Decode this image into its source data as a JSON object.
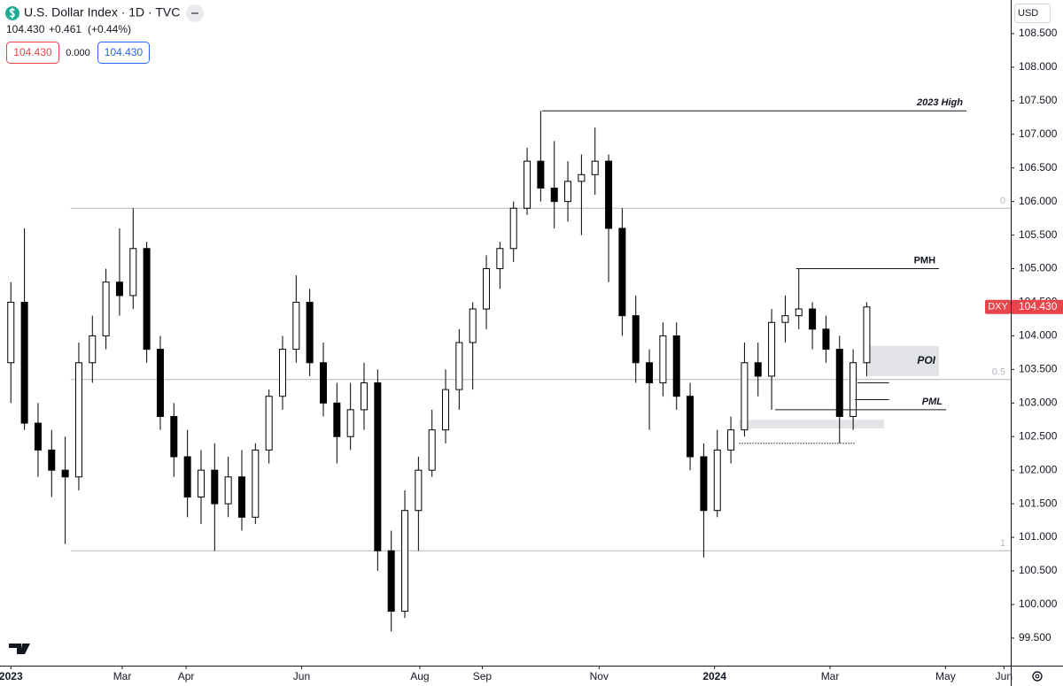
{
  "chart_data": {
    "type": "candlestick",
    "title": "U.S. Dollar Index · 1D · TVC",
    "header": {
      "price": "104.430",
      "change": "+0.461",
      "change_pct": "(+0.44%)",
      "sell": "104.430",
      "spread": "0.000",
      "buy": "104.430"
    },
    "currency": "USD",
    "x": [
      0,
      5,
      10,
      15,
      20,
      25,
      30,
      35,
      40,
      45,
      50,
      55,
      60,
      65,
      70,
      75,
      80,
      85,
      90,
      95,
      100,
      105,
      110,
      115,
      120,
      125,
      130,
      135,
      140,
      145,
      150,
      155,
      160,
      165,
      170,
      175,
      180,
      185,
      190,
      195,
      200,
      205,
      210,
      215,
      220,
      225,
      230,
      235,
      240,
      245,
      250,
      255,
      260,
      265,
      270,
      275,
      280,
      285,
      290,
      295,
      300,
      305,
      310,
      315
    ],
    "open": [
      103.6,
      104.5,
      102.7,
      102.3,
      102.0,
      101.9,
      103.6,
      104.0,
      104.8,
      104.6,
      105.3,
      103.8,
      102.8,
      102.2,
      101.6,
      102.0,
      101.5,
      101.9,
      101.3,
      102.3,
      103.1,
      103.8,
      104.5,
      103.6,
      103.0,
      102.5,
      102.9,
      103.3,
      100.8,
      99.9,
      101.4,
      102.0,
      102.6,
      103.2,
      103.9,
      104.4,
      105.0,
      105.3,
      105.9,
      106.6,
      106.2,
      106.0,
      106.3,
      106.4,
      106.6,
      105.6,
      104.3,
      103.6,
      103.3,
      104.0,
      103.1,
      102.2,
      101.4,
      102.3,
      102.6,
      103.6,
      103.4,
      104.2,
      104.3,
      104.4,
      104.1,
      103.8,
      102.8,
      103.6
    ],
    "high": [
      104.8,
      105.6,
      103.0,
      102.6,
      102.5,
      103.9,
      104.3,
      105.0,
      105.6,
      105.9,
      105.4,
      104.0,
      103.0,
      102.6,
      102.3,
      102.4,
      102.2,
      102.3,
      102.4,
      103.2,
      104.0,
      104.9,
      104.7,
      103.9,
      103.3,
      103.3,
      103.6,
      103.5,
      101.1,
      101.7,
      102.2,
      102.9,
      103.5,
      104.1,
      104.5,
      105.2,
      105.4,
      106.0,
      106.8,
      107.35,
      106.9,
      106.6,
      106.7,
      107.1,
      106.7,
      105.9,
      104.6,
      103.8,
      104.2,
      104.2,
      103.3,
      102.4,
      102.6,
      102.8,
      103.9,
      103.9,
      104.4,
      104.6,
      105.0,
      104.5,
      104.3,
      104.0,
      103.8,
      104.5
    ],
    "low": [
      103.0,
      102.6,
      101.9,
      101.6,
      100.9,
      101.7,
      103.3,
      103.8,
      104.3,
      104.4,
      103.6,
      102.6,
      101.9,
      101.3,
      101.2,
      100.8,
      101.3,
      101.1,
      101.2,
      102.1,
      102.9,
      103.6,
      103.4,
      102.8,
      102.1,
      102.3,
      102.6,
      100.5,
      99.6,
      99.8,
      100.8,
      101.9,
      102.4,
      102.9,
      103.2,
      104.1,
      104.7,
      105.1,
      105.8,
      106.0,
      105.6,
      105.7,
      105.5,
      106.1,
      104.8,
      104.0,
      103.3,
      102.6,
      103.1,
      102.9,
      102.0,
      100.7,
      101.3,
      102.1,
      102.5,
      103.1,
      102.9,
      103.9,
      104.1,
      103.8,
      103.6,
      102.4,
      102.6,
      103.4
    ],
    "close": [
      104.5,
      102.7,
      102.3,
      102.0,
      101.9,
      103.6,
      104.0,
      104.8,
      104.6,
      105.3,
      103.8,
      102.8,
      102.2,
      101.6,
      102.0,
      101.5,
      101.9,
      101.3,
      102.3,
      103.1,
      103.8,
      104.5,
      103.6,
      103.0,
      102.5,
      102.9,
      103.3,
      100.8,
      99.9,
      101.4,
      102.0,
      102.6,
      103.2,
      103.9,
      104.4,
      105.0,
      105.3,
      105.9,
      106.6,
      106.2,
      106.0,
      106.3,
      106.4,
      106.6,
      105.6,
      104.3,
      103.6,
      103.3,
      104.0,
      103.1,
      102.2,
      101.4,
      102.3,
      102.6,
      103.6,
      103.4,
      104.2,
      104.3,
      104.4,
      104.1,
      103.8,
      102.8,
      103.6,
      104.43
    ],
    "up_color": "#ffffff",
    "down_color": "#000000",
    "border_color": "#000000",
    "xlim": [
      -4,
      368
    ],
    "ylim": [
      99.09,
      109.0
    ],
    "xticks": [
      {
        "value": 0,
        "label": "2023"
      },
      {
        "value": 41,
        "label": "Mar"
      },
      {
        "value": 64.5,
        "label": "Apr"
      },
      {
        "value": 107,
        "label": "Jun"
      },
      {
        "value": 150.5,
        "label": "Aug"
      },
      {
        "value": 173.5,
        "label": "Sep"
      },
      {
        "value": 216.5,
        "label": "Nov"
      },
      {
        "value": 259,
        "label": "2024"
      },
      {
        "value": 301.5,
        "label": "Mar"
      },
      {
        "value": 344,
        "label": "May"
      },
      {
        "value": 365.5,
        "label": "Jun"
      }
    ],
    "yticks": [
      {
        "value": 99.5,
        "label": "99.500"
      },
      {
        "value": 100,
        "label": "100.000"
      },
      {
        "value": 100.5,
        "label": "100.500"
      },
      {
        "value": 101,
        "label": "101.000"
      },
      {
        "value": 101.5,
        "label": "101.500"
      },
      {
        "value": 102,
        "label": "102.000"
      },
      {
        "value": 102.5,
        "label": "102.500"
      },
      {
        "value": 103,
        "label": "103.000"
      },
      {
        "value": 103.5,
        "label": "103.500"
      },
      {
        "value": 104,
        "label": "104.000"
      },
      {
        "value": 104.5,
        "label": "104.500"
      },
      {
        "value": 105,
        "label": "105.000"
      },
      {
        "value": 105.5,
        "label": "105.500"
      },
      {
        "value": 106,
        "label": "106.000"
      },
      {
        "value": 106.5,
        "label": "106.500"
      },
      {
        "value": 107,
        "label": "107.000"
      },
      {
        "value": 107.5,
        "label": "107.500"
      },
      {
        "value": 108,
        "label": "108.000"
      },
      {
        "value": 108.5,
        "label": "108.500"
      }
    ],
    "grid": false,
    "fib": {
      "x_start": 22,
      "levels": [
        {
          "ratio": 0,
          "price": 105.9
        },
        {
          "ratio": 0.5,
          "price": 103.35
        },
        {
          "ratio": 1,
          "price": 100.8
        }
      ]
    },
    "levels": [
      {
        "label": "2023 High",
        "value": 107.35,
        "x": [
          195.5,
          351.7
        ],
        "italic": true
      },
      {
        "label": "PMH",
        "value": 105.0,
        "x": [
          289,
          341.6
        ],
        "italic": false
      },
      {
        "label": "PML",
        "value": 102.9,
        "x": [
          281.3,
          344.2
        ],
        "italic": true
      },
      {
        "value": 103.3,
        "x": [
          311.6,
          323.2
        ]
      },
      {
        "value": 103.05,
        "x": [
          310.6,
          323.2
        ]
      },
      {
        "value": 102.4,
        "x": [
          268,
          311
        ],
        "style": "dotted"
      }
    ],
    "zones": [
      {
        "label": "POI",
        "low": 103.4,
        "high": 103.85,
        "x": [
          315.5,
          341.6
        ]
      },
      {
        "low": 102.62,
        "high": 102.75,
        "x": [
          268,
          321.4
        ]
      }
    ],
    "last_price": {
      "symbol": "DXY",
      "value": 104.43,
      "label": "104.430",
      "color": "#e8444a"
    }
  }
}
